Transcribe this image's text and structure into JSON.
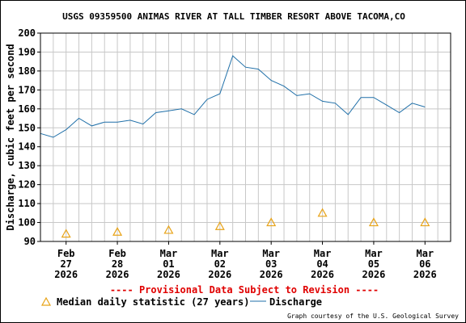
{
  "chart_data": {
    "type": "line",
    "title": "USGS 09359500 ANIMAS RIVER AT TALL TIMBER RESORT ABOVE TACOMA,CO",
    "xlabel": "",
    "ylabel": "Discharge, cubic feet per second",
    "ylim": [
      90,
      200
    ],
    "yticks": [
      90,
      100,
      110,
      120,
      130,
      140,
      150,
      160,
      170,
      180,
      190,
      200
    ],
    "xlim": [
      "2026-02-26 12:00",
      "2026-03-06 12:00"
    ],
    "x_tick_labels": [
      {
        "month": "Feb",
        "day": "27",
        "year": "2026"
      },
      {
        "month": "Feb",
        "day": "28",
        "year": "2026"
      },
      {
        "month": "Mar",
        "day": "01",
        "year": "2026"
      },
      {
        "month": "Mar",
        "day": "02",
        "year": "2026"
      },
      {
        "month": "Mar",
        "day": "03",
        "year": "2026"
      },
      {
        "month": "Mar",
        "day": "04",
        "year": "2026"
      },
      {
        "month": "Mar",
        "day": "05",
        "year": "2026"
      },
      {
        "month": "Mar",
        "day": "06",
        "year": "2026"
      }
    ],
    "grid": true,
    "series": [
      {
        "name": "Discharge",
        "color": "#1f6fa8",
        "x": [
          "2026-02-26 12:00",
          "2026-02-26 18:00",
          "2026-02-27 00:00",
          "2026-02-27 06:00",
          "2026-02-27 12:00",
          "2026-02-27 18:00",
          "2026-02-28 00:00",
          "2026-02-28 06:00",
          "2026-02-28 12:00",
          "2026-02-28 18:00",
          "2026-03-01 00:00",
          "2026-03-01 06:00",
          "2026-03-01 12:00",
          "2026-03-01 18:00",
          "2026-03-02 00:00",
          "2026-03-02 06:00",
          "2026-03-02 12:00",
          "2026-03-02 18:00",
          "2026-03-03 00:00",
          "2026-03-03 06:00",
          "2026-03-03 12:00",
          "2026-03-03 18:00",
          "2026-03-04 00:00",
          "2026-03-04 06:00",
          "2026-03-04 12:00",
          "2026-03-04 18:00",
          "2026-03-05 00:00",
          "2026-03-05 06:00",
          "2026-03-05 12:00",
          "2026-03-05 18:00",
          "2026-03-06 00:00"
        ],
        "values": [
          147,
          145,
          149,
          155,
          151,
          153,
          153,
          154,
          152,
          158,
          159,
          160,
          157,
          165,
          168,
          188,
          182,
          181,
          175,
          172,
          167,
          168,
          164,
          163,
          157,
          166,
          166,
          162,
          158,
          163,
          161
        ]
      },
      {
        "name": "Median daily statistic (27 years)",
        "color": "#e8a317",
        "marker": "triangle",
        "x": [
          "2026-02-27 00:00",
          "2026-02-28 00:00",
          "2026-03-01 00:00",
          "2026-03-02 00:00",
          "2026-03-03 00:00",
          "2026-03-04 00:00",
          "2026-03-05 00:00",
          "2026-03-06 00:00"
        ],
        "values": [
          94,
          95,
          96,
          98,
          100,
          105,
          100,
          100
        ]
      }
    ]
  },
  "notice": "---- Provisional Data Subject to Revision ----",
  "notice_color": "#e00000",
  "legend": {
    "median_label": "Median daily statistic (27 years)",
    "discharge_label": "Discharge"
  },
  "credit": "Graph courtesy of the U.S. Geological Survey"
}
